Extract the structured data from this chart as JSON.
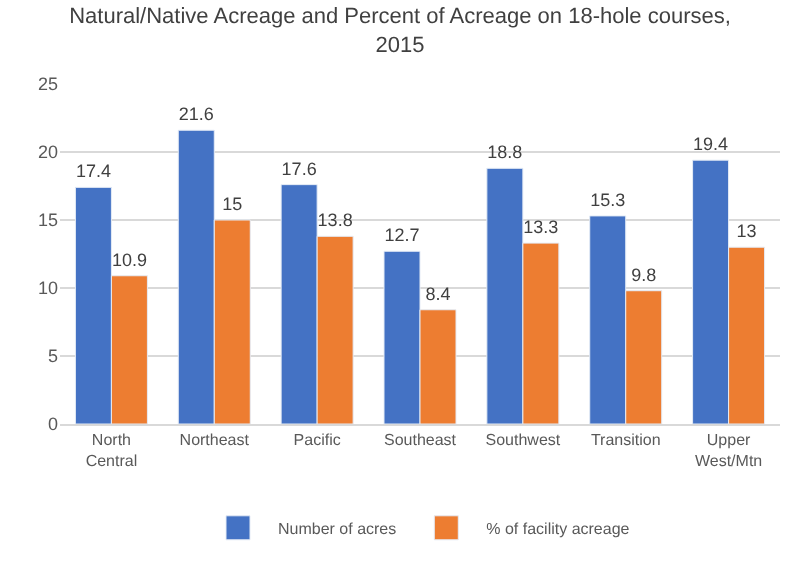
{
  "chart_data": {
    "type": "bar",
    "title": "Natural/Native Acreage and Percent of Acreage on 18-hole courses, 2015",
    "categories": [
      "North Central",
      "Northeast",
      "Pacific",
      "Southeast",
      "Southwest",
      "Transition",
      "Upper West/Mtn"
    ],
    "series": [
      {
        "name": "Number of acres",
        "color": "#4472c4",
        "values": [
          17.4,
          21.6,
          17.6,
          12.7,
          18.8,
          15.3,
          19.4
        ]
      },
      {
        "name": "% of facility acreage",
        "color": "#ed7d31",
        "values": [
          10.9,
          15,
          13.8,
          8.4,
          13.3,
          9.8,
          13
        ]
      }
    ],
    "ylim": [
      0,
      25
    ],
    "yticks": [
      0,
      5,
      10,
      15,
      20,
      25
    ],
    "grid": "y",
    "legend": "bottom",
    "data_labels": true
  }
}
